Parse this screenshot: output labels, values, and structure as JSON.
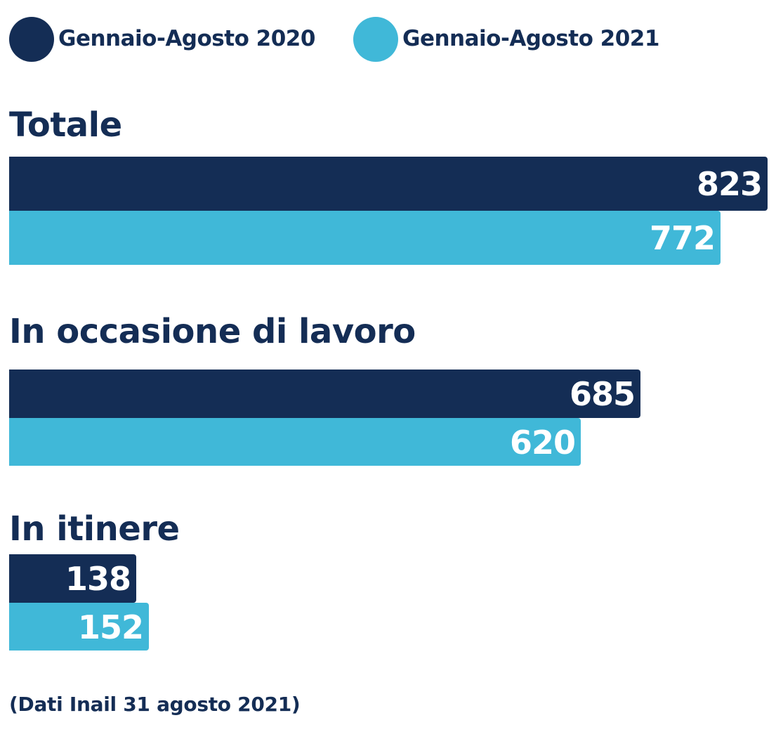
{
  "colors": {
    "series_2020": "#142d55",
    "series_2021": "#40b8d8",
    "text": "#142d55",
    "label": "#ffffff"
  },
  "legend": [
    {
      "label": "Gennaio-Agosto 2020",
      "color": "#142d55"
    },
    {
      "label": "Gennaio-Agosto 2021",
      "color": "#40b8d8"
    }
  ],
  "source_note": "(Dati Inail 31 agosto 2021)",
  "chart_data": {
    "type": "bar",
    "orientation": "horizontal",
    "categories": [
      "Totale",
      "In occasione di lavoro",
      "In itinere"
    ],
    "series": [
      {
        "name": "Gennaio-Agosto 2020",
        "values": [
          823,
          685,
          138
        ]
      },
      {
        "name": "Gennaio-Agosto 2021",
        "values": [
          772,
          620,
          152
        ]
      }
    ],
    "xlim": [
      0,
      823
    ],
    "grid": false,
    "legend_position": "top-left"
  }
}
